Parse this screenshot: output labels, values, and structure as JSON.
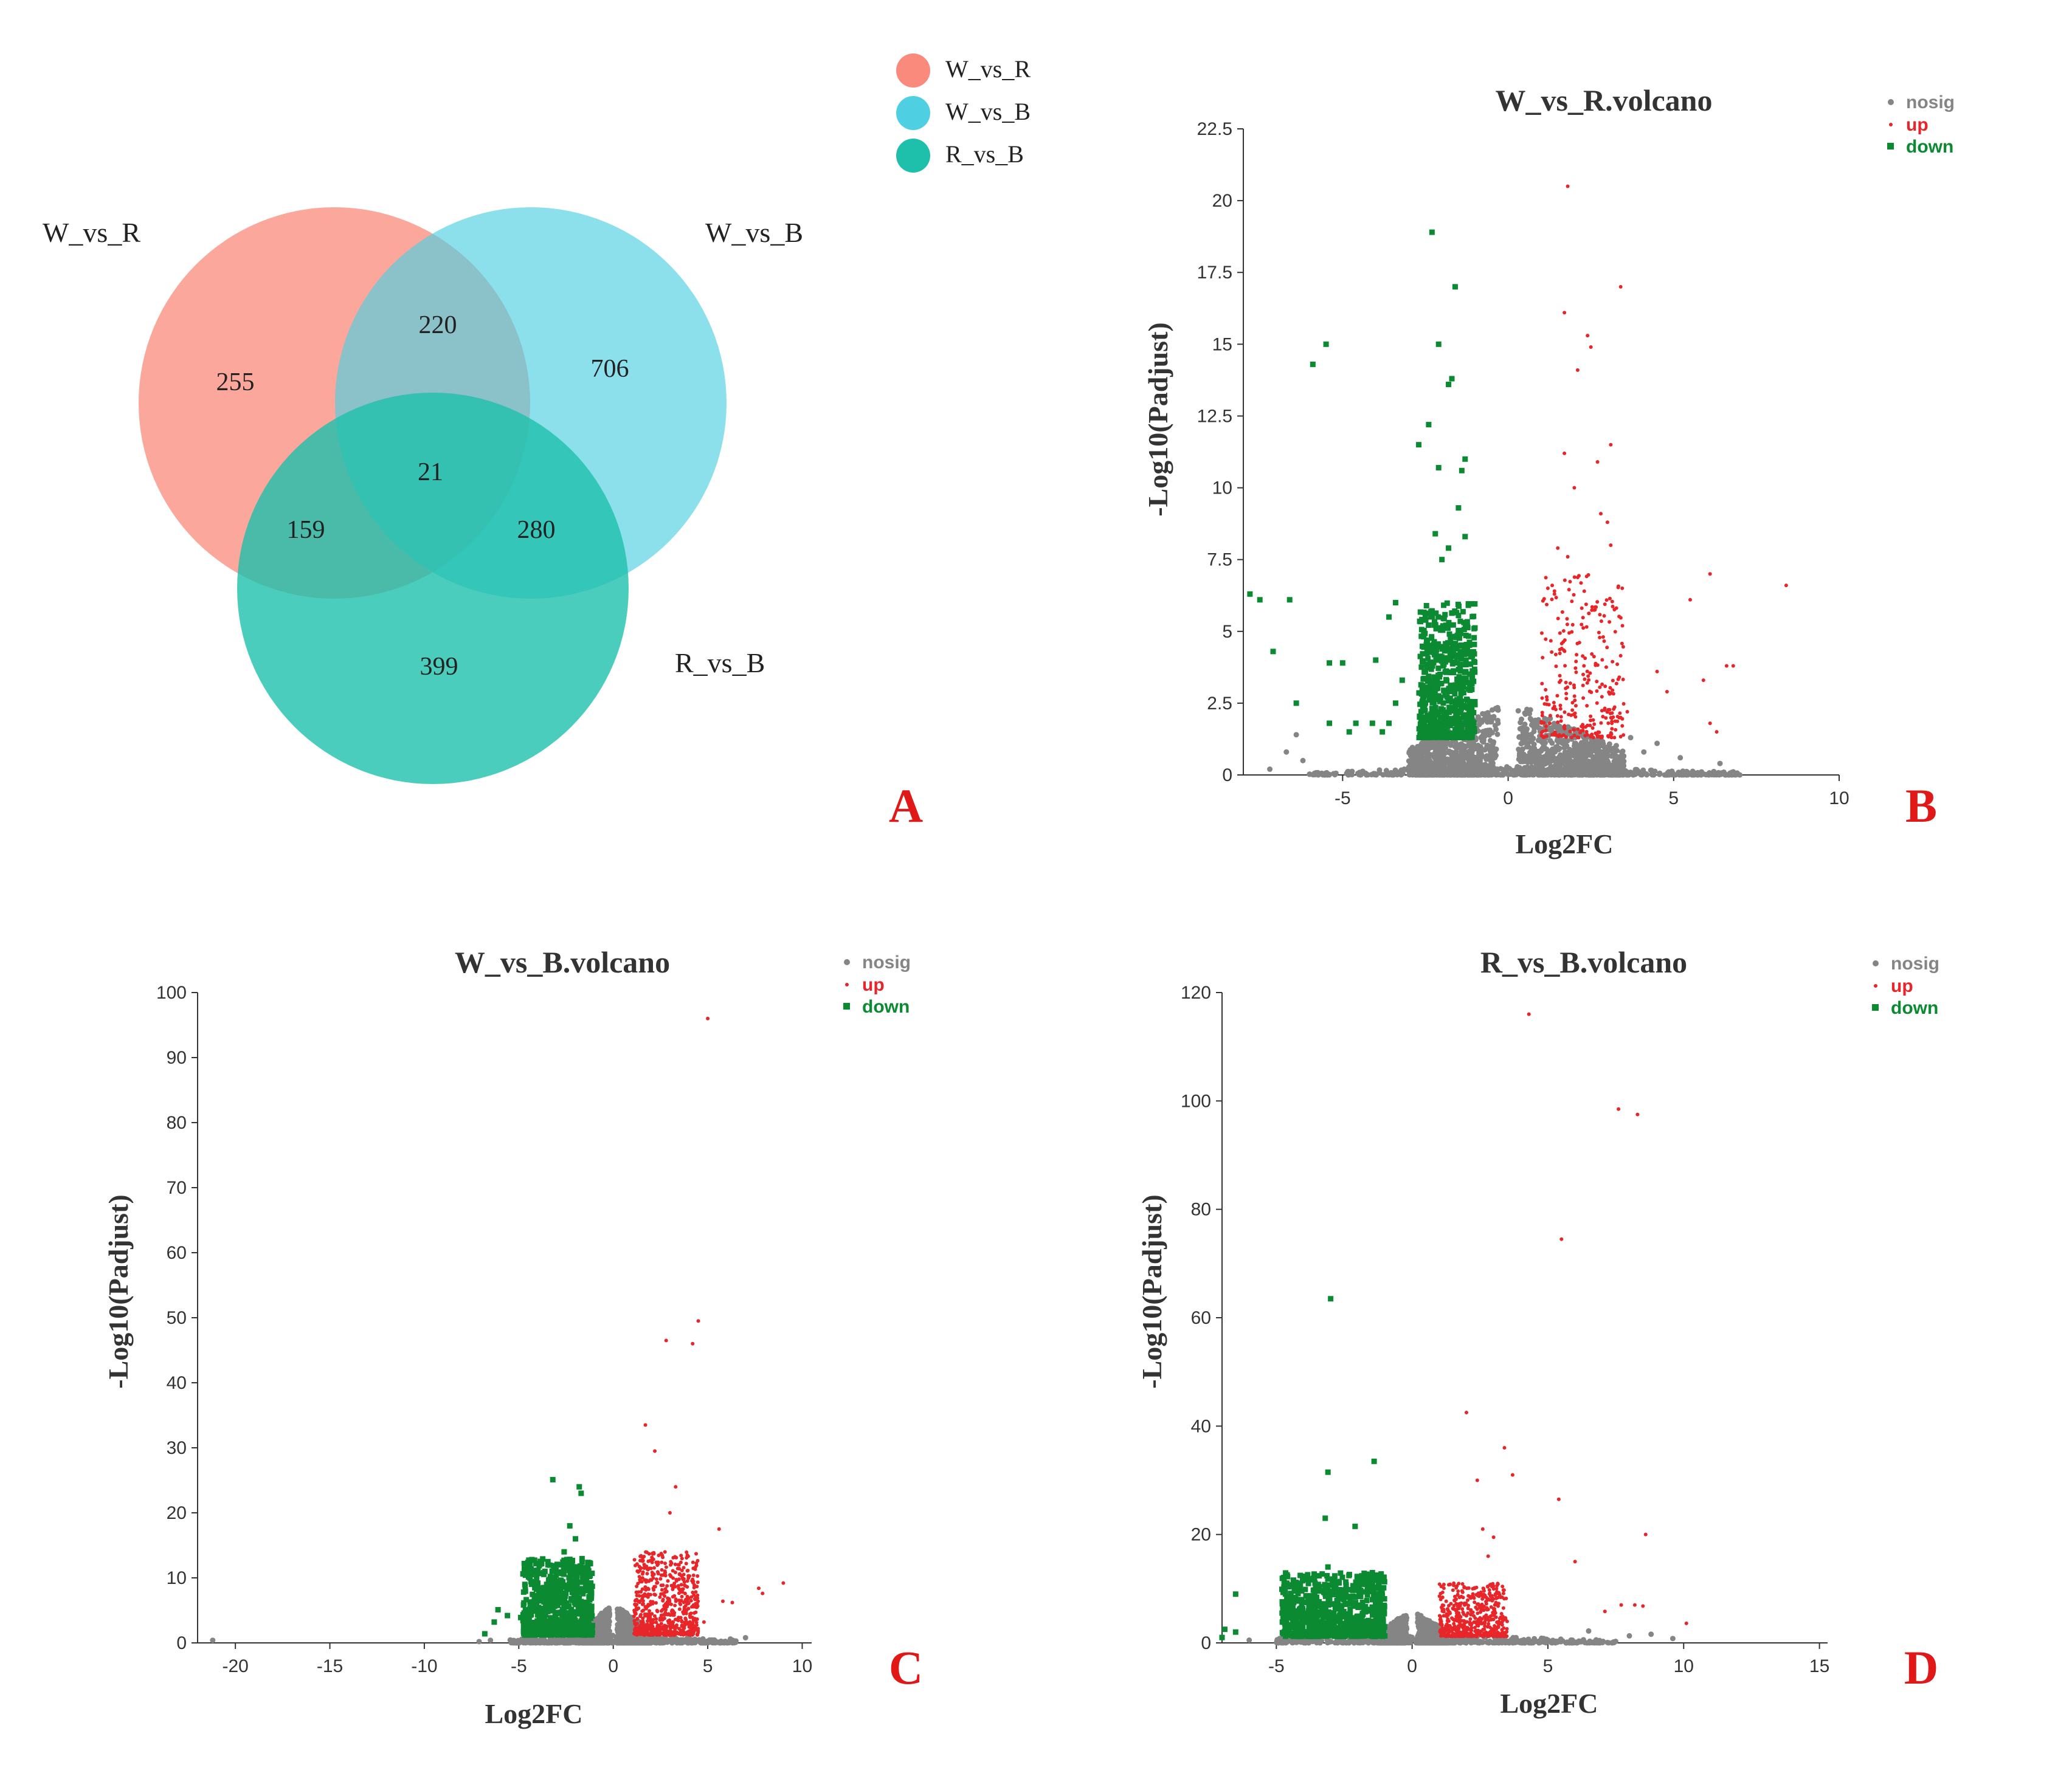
{
  "colors": {
    "nosig": "#858585",
    "up": "#e8262a",
    "down": "#0b8a32",
    "venn_wr": "#fa8a7b",
    "venn_wb": "#4fd0e2",
    "venn_rb": "#1ec0ac",
    "panel_letter": "#e01818"
  },
  "chart_data": [
    {
      "type": "venn",
      "panel": "A",
      "legend": [
        "W_vs_R",
        "W_vs_B",
        "R_vs_B"
      ],
      "set_labels": [
        "W_vs_R",
        "W_vs_B",
        "R_vs_B"
      ],
      "regions": {
        "w_vs_r_only": "255",
        "w_vs_b_only": "706",
        "r_vs_b_only": "399",
        "wr_and_wb": "220",
        "wr_and_rb": "159",
        "wb_and_rb": "280",
        "all_three": "21"
      }
    },
    {
      "type": "scatter",
      "panel": "B",
      "title": "W_vs_R.volcano",
      "xlabel": "Log2FC",
      "ylabel": "-Log10(Padjust)",
      "xlim": [
        -8,
        10
      ],
      "ylim": [
        0,
        22.5
      ],
      "xticks": [
        "-5",
        "0",
        "5",
        "10"
      ],
      "xtick_values": [
        -5,
        0,
        5,
        10
      ],
      "yticks": [
        "0",
        "2.5",
        "5",
        "7.5",
        "10",
        "12.5",
        "15",
        "17.5",
        "20",
        "22.5"
      ],
      "ytick_values": [
        0,
        2.5,
        5,
        7.5,
        10,
        12.5,
        15,
        17.5,
        20,
        22.5
      ],
      "legend": [
        "nosig",
        "up",
        "down"
      ],
      "up_points": [
        [
          1.8,
          20.5
        ],
        [
          3.4,
          17
        ],
        [
          1.7,
          16.1
        ],
        [
          2.4,
          15.3
        ],
        [
          2.5,
          14.9
        ],
        [
          2.1,
          14.1
        ],
        [
          3.1,
          11.5
        ],
        [
          1.7,
          11.2
        ],
        [
          2.7,
          10.9
        ],
        [
          2,
          10
        ],
        [
          2.8,
          9.1
        ],
        [
          3,
          8.8
        ],
        [
          3.1,
          8
        ],
        [
          1.5,
          7.9
        ],
        [
          1.8,
          7.6
        ],
        [
          6.1,
          7
        ],
        [
          8.4,
          6.6
        ],
        [
          5.5,
          6.1
        ],
        [
          6.8,
          3.8
        ],
        [
          6.6,
          3.8
        ],
        [
          4.5,
          3.6
        ],
        [
          5.9,
          3.3
        ],
        [
          6.1,
          1.8
        ],
        [
          6.3,
          1.5
        ],
        [
          4.8,
          2.9
        ],
        [
          1.2,
          6.5
        ],
        [
          1.4,
          6.3
        ],
        [
          2.3,
          6.4
        ],
        [
          3.4,
          2
        ],
        [
          3.6,
          2.2
        ]
      ],
      "down_points": [
        [
          -2.3,
          18.9
        ],
        [
          -1.6,
          17
        ],
        [
          -2.1,
          15
        ],
        [
          -5.5,
          15
        ],
        [
          -5.9,
          14.3
        ],
        [
          -1.8,
          13.6
        ],
        [
          -1.7,
          13.8
        ],
        [
          -2.4,
          12.2
        ],
        [
          -1.3,
          11
        ],
        [
          -1.4,
          10.6
        ],
        [
          -2.7,
          11.5
        ],
        [
          -2.1,
          10.7
        ],
        [
          -1.5,
          9.3
        ],
        [
          -1.3,
          8.3
        ],
        [
          -2.2,
          8.4
        ],
        [
          -1.8,
          7.9
        ],
        [
          -2,
          7.5
        ],
        [
          -7.8,
          6.3
        ],
        [
          -7.5,
          6.1
        ],
        [
          -6.6,
          6.1
        ],
        [
          -7.1,
          4.3
        ],
        [
          -3.4,
          6
        ],
        [
          -3.6,
          5.5
        ],
        [
          -4,
          4
        ],
        [
          -5.4,
          3.9
        ],
        [
          -5,
          3.9
        ],
        [
          -3.2,
          3.3
        ],
        [
          -6.4,
          2.5
        ],
        [
          -5.4,
          1.8
        ],
        [
          -4.6,
          1.8
        ],
        [
          -4.1,
          1.8
        ],
        [
          -4.8,
          1.5
        ],
        [
          -3.6,
          1.8
        ],
        [
          -3.8,
          1.5
        ],
        [
          -3.4,
          2.5
        ]
      ],
      "nosig_outliers": [
        [
          -6.4,
          1.4
        ],
        [
          -6.7,
          0.8
        ],
        [
          -7.2,
          0.2
        ],
        [
          -6.2,
          0.5
        ],
        [
          6.4,
          0.4
        ],
        [
          4.5,
          1.1
        ],
        [
          5.2,
          0.6
        ],
        [
          3.7,
          1.3
        ],
        [
          4.1,
          0.8
        ]
      ],
      "clusters": {
        "nosig_left": {
          "x_range": [
            -3.0,
            -0.3
          ],
          "y_range": [
            0,
            2.6
          ],
          "count": 900
        },
        "nosig_right": {
          "x_range": [
            0.3,
            3.5
          ],
          "y_range": [
            0,
            2.6
          ],
          "count": 900
        },
        "nosig_baseline": {
          "x_range": [
            -6,
            7
          ],
          "y_range": [
            0,
            0.3
          ],
          "count": 500
        },
        "down_cluster": {
          "x_range": [
            -2.7,
            -1.0
          ],
          "y_range": [
            1.3,
            6.0
          ],
          "count": 600
        },
        "up_cluster": {
          "x_range": [
            1.0,
            3.5
          ],
          "y_range": [
            1.3,
            7.0
          ],
          "count": 280
        }
      },
      "panel_label": "B"
    },
    {
      "type": "scatter",
      "panel": "C",
      "title": "W_vs_B.volcano",
      "xlabel": "Log2FC",
      "ylabel": "-Log10(Padjust)",
      "xlim": [
        -22,
        10.5
      ],
      "ylim": [
        0,
        100
      ],
      "xticks": [
        "-20",
        "-15",
        "-10",
        "-5",
        "0",
        "5",
        "10"
      ],
      "xtick_values": [
        -20,
        -15,
        -10,
        -5,
        0,
        5,
        10
      ],
      "yticks": [
        "0",
        "10",
        "20",
        "30",
        "40",
        "50",
        "60",
        "70",
        "80",
        "90",
        "100"
      ],
      "ytick_values": [
        0,
        10,
        20,
        30,
        40,
        50,
        60,
        70,
        80,
        90,
        100
      ],
      "legend": [
        "nosig",
        "up",
        "down"
      ],
      "up_points": [
        [
          5,
          96
        ],
        [
          4.5,
          49.5
        ],
        [
          2.8,
          46.5
        ],
        [
          4.2,
          46
        ],
        [
          1.7,
          33.5
        ],
        [
          2.2,
          29.5
        ],
        [
          5.6,
          17.5
        ],
        [
          9,
          9.2
        ],
        [
          7.7,
          8.4
        ],
        [
          7.9,
          7.6
        ],
        [
          6.3,
          6.2
        ],
        [
          5.8,
          6.4
        ],
        [
          4.8,
          3.2
        ],
        [
          3.3,
          24
        ],
        [
          3.0,
          20
        ]
      ],
      "down_points": [
        [
          -3.2,
          25.1
        ],
        [
          -1.8,
          24
        ],
        [
          -1.7,
          23
        ],
        [
          -2.3,
          18
        ],
        [
          -2.0,
          16
        ],
        [
          -6.8,
          1.4
        ],
        [
          -6.1,
          5.1
        ],
        [
          -5.6,
          4.2
        ],
        [
          -4.9,
          3.9
        ],
        [
          -6.3,
          3.2
        ],
        [
          -2.6,
          14
        ]
      ],
      "nosig_outliers": [
        [
          -21.2,
          0.4
        ],
        [
          7,
          0.8
        ],
        [
          6.2,
          0.6
        ],
        [
          -6.5,
          0.4
        ],
        [
          -7.1,
          0.2
        ]
      ],
      "clusters": {
        "nosig_left": {
          "x_range": [
            -1.7,
            -0.2
          ],
          "y_range": [
            0,
            6
          ],
          "count": 700
        },
        "nosig_right": {
          "x_range": [
            0.2,
            2.0
          ],
          "y_range": [
            0,
            6
          ],
          "count": 700
        },
        "nosig_baseline": {
          "x_range": [
            -5.5,
            6.5
          ],
          "y_range": [
            0,
            1.2
          ],
          "count": 400
        },
        "down_cluster": {
          "x_range": [
            -4.8,
            -1.1
          ],
          "y_range": [
            1.2,
            13
          ],
          "count": 700
        },
        "up_cluster": {
          "x_range": [
            1.1,
            4.5
          ],
          "y_range": [
            1.2,
            14
          ],
          "count": 650
        }
      },
      "panel_label": "C"
    },
    {
      "type": "scatter",
      "panel": "D",
      "title": "R_vs_B.volcano",
      "xlabel": "Log2FC",
      "ylabel": "-Log10(Padjust)",
      "xlim": [
        -7,
        15.3
      ],
      "ylim": [
        0,
        120
      ],
      "xticks": [
        "-5",
        "0",
        "5",
        "10",
        "15"
      ],
      "xtick_values": [
        -5,
        0,
        5,
        10,
        15
      ],
      "yticks": [
        "0",
        "20",
        "40",
        "60",
        "80",
        "100",
        "120"
      ],
      "ytick_values": [
        0,
        20,
        40,
        60,
        80,
        100,
        120
      ],
      "legend": [
        "nosig",
        "up",
        "down"
      ],
      "up_points": [
        [
          4.3,
          116
        ],
        [
          7.6,
          98.5
        ],
        [
          8.3,
          97.5
        ],
        [
          5.5,
          74.5
        ],
        [
          2,
          42.5
        ],
        [
          3.4,
          36
        ],
        [
          3.7,
          31
        ],
        [
          2.4,
          30
        ],
        [
          5.4,
          26.5
        ],
        [
          8.6,
          20
        ],
        [
          6,
          15
        ],
        [
          7.7,
          7
        ],
        [
          8.2,
          7
        ],
        [
          8.5,
          6.8
        ],
        [
          7.1,
          5.8
        ],
        [
          10.1,
          3.6
        ],
        [
          2.6,
          21
        ],
        [
          3.0,
          19.5
        ],
        [
          2.8,
          16
        ]
      ],
      "down_points": [
        [
          -3,
          63.5
        ],
        [
          -1.4,
          33.5
        ],
        [
          -3.1,
          31.5
        ],
        [
          -3.2,
          23
        ],
        [
          -2.1,
          21.5
        ],
        [
          -6.5,
          9
        ],
        [
          -6.9,
          2.5
        ],
        [
          -6.5,
          2
        ],
        [
          -7,
          1
        ],
        [
          -4.2,
          9.1
        ],
        [
          -3.1,
          14
        ]
      ],
      "nosig_outliers": [
        [
          -6,
          0.5
        ],
        [
          8,
          1.3
        ],
        [
          9.6,
          0.8
        ],
        [
          8.8,
          1.6
        ],
        [
          6.5,
          2.2
        ]
      ],
      "clusters": {
        "nosig_left": {
          "x_range": [
            -1.3,
            -0.2
          ],
          "y_range": [
            0,
            6
          ],
          "count": 600
        },
        "nosig_right": {
          "x_range": [
            0.2,
            1.3
          ],
          "y_range": [
            0,
            6
          ],
          "count": 600
        },
        "nosig_baseline": {
          "x_range": [
            -5,
            7.5
          ],
          "y_range": [
            0,
            1.5
          ],
          "count": 400
        },
        "down_cluster": {
          "x_range": [
            -4.8,
            -1.0
          ],
          "y_range": [
            1.2,
            13
          ],
          "count": 800
        },
        "up_cluster": {
          "x_range": [
            1.0,
            3.5
          ],
          "y_range": [
            1.2,
            11
          ],
          "count": 500
        }
      },
      "panel_label": "D"
    }
  ]
}
